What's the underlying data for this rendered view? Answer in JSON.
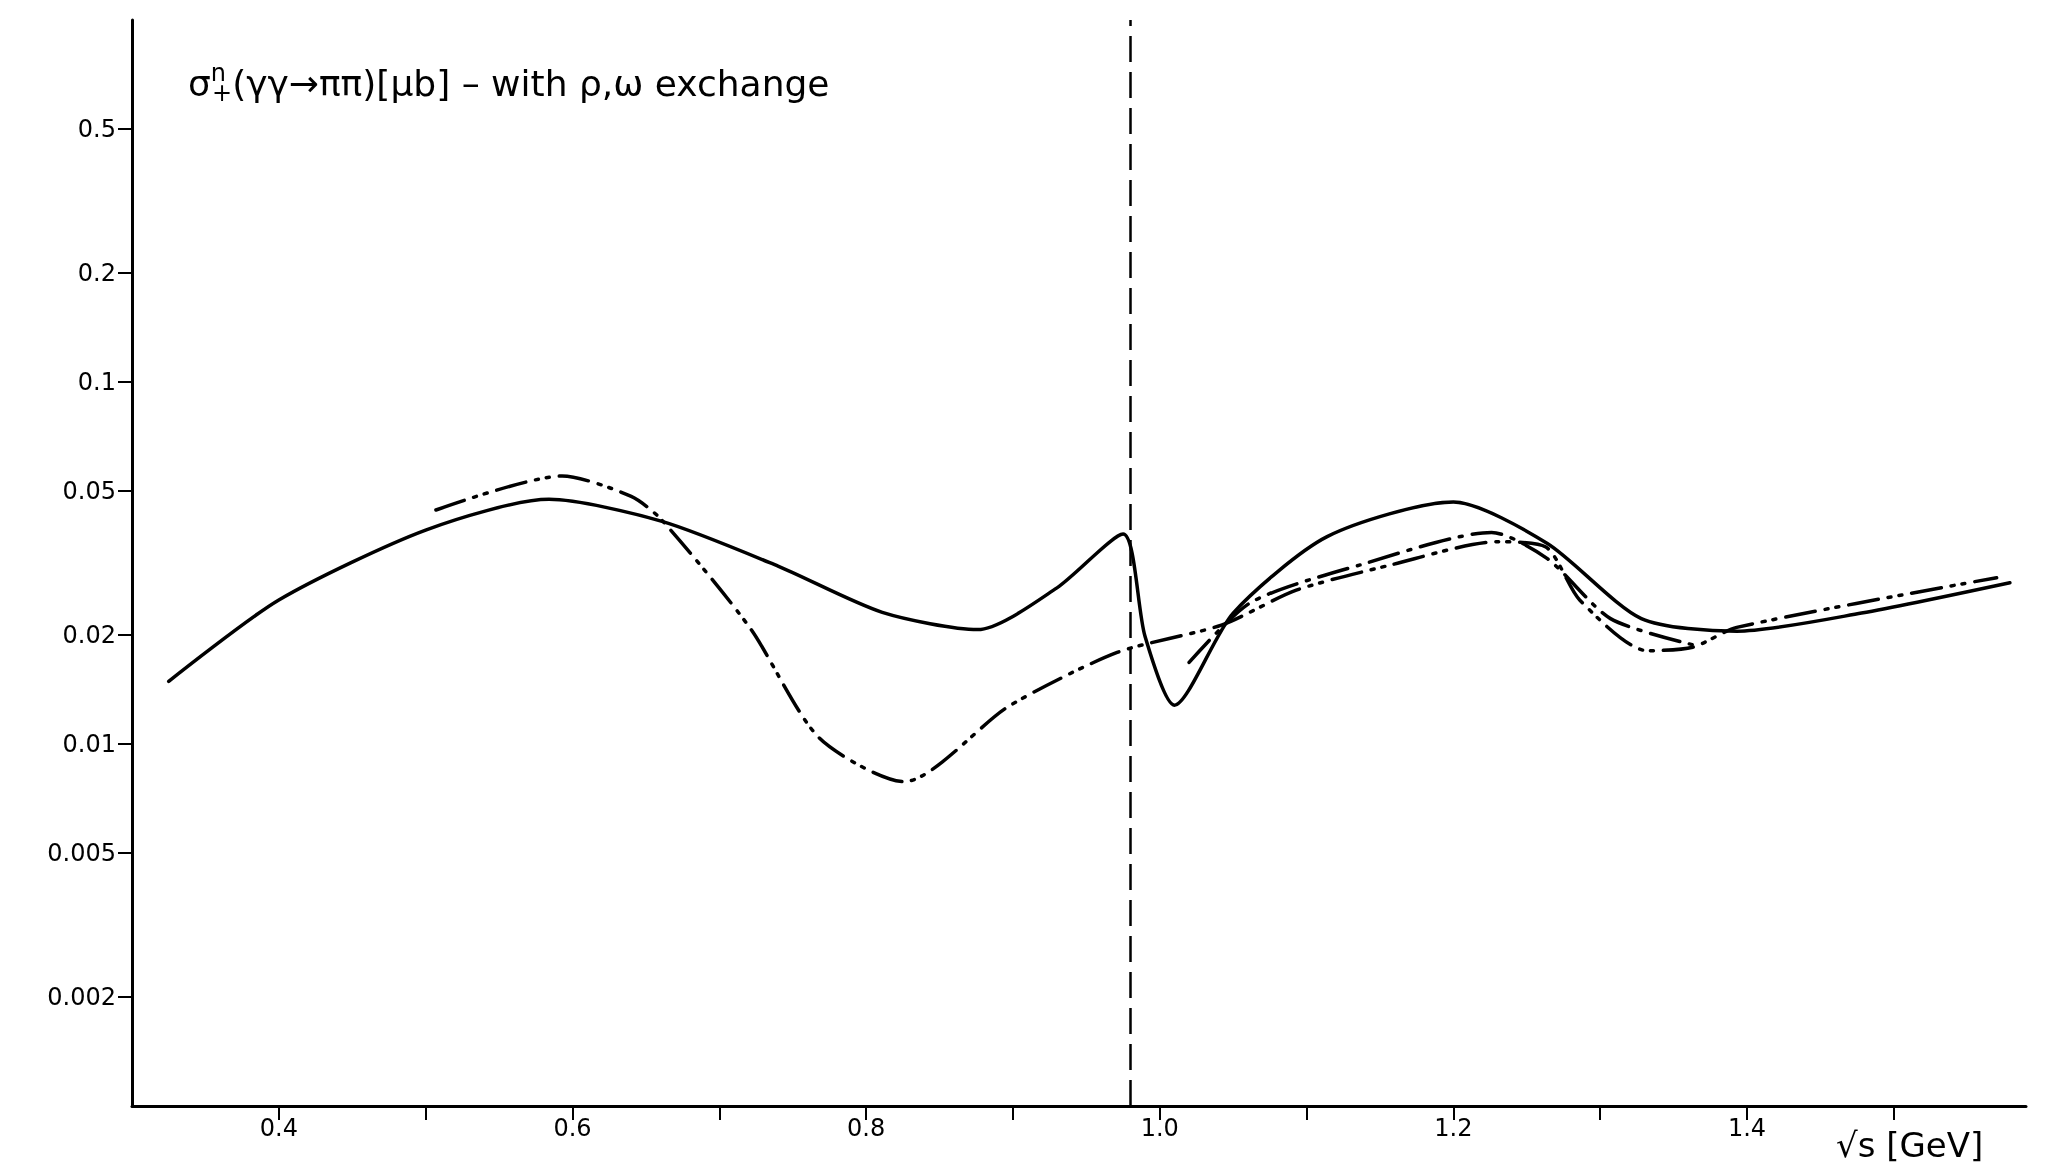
{
  "chart_data": {
    "type": "line",
    "title": "σ$^{n}$$_{+}$(γγ→ππ)[μb] – with ρ,ω exchange",
    "xlabel": "√s [GeV]",
    "xlim": [
      0.3,
      1.59
    ],
    "xticks": [
      0.4,
      {
        "value": 0.5,
        "label": null
      },
      0.6,
      {
        "value": 0.7,
        "label": null
      },
      0.8,
      {
        "value": 0.9,
        "label": null
      },
      {
        "value": 1.0,
        "label": "1.0"
      },
      {
        "value": 1.1,
        "label": null
      },
      1.2,
      {
        "value": 1.3,
        "label": null
      },
      1.4,
      {
        "value": 1.5,
        "label": null
      }
    ],
    "ylim": [
      0.001,
      1
    ],
    "yticks": [
      0.002,
      0.005,
      0.01,
      0.02,
      0.05,
      0.1,
      0.2,
      0.5
    ],
    "log": "y",
    "grid": false,
    "marker": "none",
    "series": [
      {
        "color": "#000000",
        "line_style": "solid",
        "x": [
          0.325,
          0.4,
          0.5,
          0.584,
          0.661,
          0.74,
          0.811,
          0.876,
          0.93,
          0.975,
          0.99,
          1.01,
          1.05,
          1.114,
          1.2,
          1.264,
          1.328,
          1.393,
          1.478,
          1.579
        ],
        "values": [
          0.0149,
          0.025,
          0.039,
          0.0474,
          0.0412,
          0.031,
          0.0231,
          0.0207,
          0.027,
          0.038,
          0.0198,
          0.0128,
          0.023,
          0.0374,
          0.0466,
          0.0358,
          0.0222,
          0.0205,
          0.023,
          0.0279
        ]
      },
      {
        "color": "#000000",
        "line_style": "dashed",
        "x": [
          0.507,
          0.593,
          0.64,
          0.661,
          0.721,
          0.768,
          0.826,
          0.897,
          0.971,
          1.042,
          1.093,
          1.157,
          1.23,
          1.263,
          1.286,
          1.332,
          1.363,
          1.393,
          1.57
        ],
        "values": [
          0.0443,
          0.055,
          0.0483,
          0.0415,
          0.0209,
          0.0104,
          0.00787,
          0.0127,
          0.0179,
          0.0213,
          0.0266,
          0.0312,
          0.0362,
          0.035,
          0.025,
          0.0181,
          0.0185,
          0.021,
          0.0288
        ]
      },
      {
        "color": "#000000",
        "line_style": "dotted",
        "x": [
          1.02,
          1.062,
          1.136,
          1.226,
          1.264,
          1.307,
          1.363
        ],
        "values": [
          0.0168,
          0.0246,
          0.0312,
          0.0384,
          0.0325,
          0.0222,
          0.0188
        ]
      }
    ],
    "ref_lines": [
      {
        "axis": "x",
        "value": 0.985,
        "line_style": "dashed",
        "color": "#000000"
      }
    ]
  }
}
